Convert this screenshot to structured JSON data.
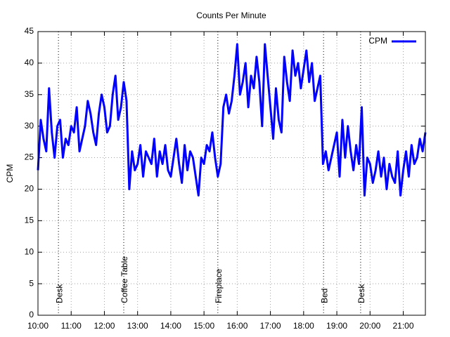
{
  "chart_data": {
    "type": "line",
    "title": "Counts Per Minute",
    "y_label": "CPM",
    "x": [
      "10:00",
      "10:05",
      "10:10",
      "10:15",
      "10:20",
      "10:25",
      "10:30",
      "10:35",
      "10:40",
      "10:45",
      "10:50",
      "10:55",
      "11:00",
      "11:05",
      "11:10",
      "11:15",
      "11:20",
      "11:25",
      "11:30",
      "11:35",
      "11:40",
      "11:45",
      "11:50",
      "11:55",
      "12:00",
      "12:05",
      "12:10",
      "12:15",
      "12:20",
      "12:25",
      "12:30",
      "12:35",
      "12:40",
      "12:45",
      "12:50",
      "12:55",
      "13:00",
      "13:05",
      "13:10",
      "13:15",
      "13:20",
      "13:25",
      "13:30",
      "13:35",
      "13:40",
      "13:45",
      "13:50",
      "13:55",
      "14:00",
      "14:05",
      "14:10",
      "14:15",
      "14:20",
      "14:25",
      "14:30",
      "14:35",
      "14:40",
      "14:45",
      "14:50",
      "14:55",
      "15:00",
      "15:05",
      "15:10",
      "15:15",
      "15:20",
      "15:25",
      "15:30",
      "15:35",
      "15:40",
      "15:45",
      "15:50",
      "15:55",
      "16:00",
      "16:05",
      "16:10",
      "16:15",
      "16:20",
      "16:25",
      "16:30",
      "16:35",
      "16:40",
      "16:45",
      "16:50",
      "16:55",
      "17:00",
      "17:05",
      "17:10",
      "17:15",
      "17:20",
      "17:25",
      "17:30",
      "17:35",
      "17:40",
      "17:45",
      "17:50",
      "17:55",
      "18:00",
      "18:05",
      "18:10",
      "18:15",
      "18:20",
      "18:25",
      "18:30",
      "18:35",
      "18:40",
      "18:45",
      "18:50",
      "18:55",
      "19:00",
      "19:05",
      "19:10",
      "19:15",
      "19:20",
      "19:25",
      "19:30",
      "19:35",
      "19:40",
      "19:45",
      "19:50",
      "19:55",
      "20:00",
      "20:05",
      "20:10",
      "20:15",
      "20:20",
      "20:25",
      "20:30",
      "20:35",
      "20:40",
      "20:45",
      "20:50",
      "20:55",
      "21:00",
      "21:05",
      "21:10",
      "21:15",
      "21:20",
      "21:25",
      "21:30",
      "21:35",
      "21:40"
    ],
    "series": [
      {
        "name": "CPM",
        "color": "#0000ff",
        "values": [
          23,
          31,
          28,
          26,
          36,
          29,
          25,
          30,
          31,
          25,
          28,
          27,
          30,
          29,
          33,
          26,
          28,
          30,
          34,
          32,
          29,
          27,
          32,
          35,
          33,
          29,
          30,
          35,
          38,
          31,
          33,
          37,
          34,
          20,
          26,
          23,
          24,
          27,
          22,
          26,
          25,
          24,
          28,
          22,
          26,
          24,
          27,
          23,
          22,
          25,
          28,
          24,
          21,
          27,
          23,
          26,
          25,
          22,
          19,
          25,
          24,
          27,
          26,
          29,
          25,
          22,
          24,
          33,
          35,
          32,
          34,
          38,
          43,
          35,
          37,
          40,
          33,
          38,
          36,
          41,
          37,
          30,
          43,
          38,
          33,
          28,
          36,
          31,
          29,
          41,
          37,
          34,
          42,
          38,
          40,
          36,
          39,
          42,
          37,
          40,
          34,
          36,
          38,
          24,
          26,
          23,
          25,
          27,
          29,
          22,
          31,
          25,
          30,
          26,
          23,
          27,
          24,
          33,
          19,
          25,
          24,
          21,
          23,
          26,
          22,
          25,
          20,
          24,
          22,
          21,
          26,
          19,
          23,
          26,
          22,
          27,
          24,
          25,
          28,
          26,
          29
        ]
      }
    ],
    "xlim": [
      "10:00",
      "21:40"
    ],
    "xticks": [
      "10:00",
      "11:00",
      "12:00",
      "13:00",
      "14:00",
      "15:00",
      "16:00",
      "17:00",
      "18:00",
      "19:00",
      "20:00",
      "21:00"
    ],
    "ylim": [
      0,
      45
    ],
    "yticks": [
      0,
      5,
      10,
      15,
      20,
      25,
      30,
      35,
      40,
      45
    ],
    "grid": true,
    "legend": "upper right",
    "annotations": [
      {
        "x": "10:37",
        "text": "Desk"
      },
      {
        "x": "12:35",
        "text": "Coffee Table"
      },
      {
        "x": "15:25",
        "text": "Fireplace"
      },
      {
        "x": "18:36",
        "text": "Bed"
      },
      {
        "x": "19:43",
        "text": "Desk"
      }
    ]
  }
}
